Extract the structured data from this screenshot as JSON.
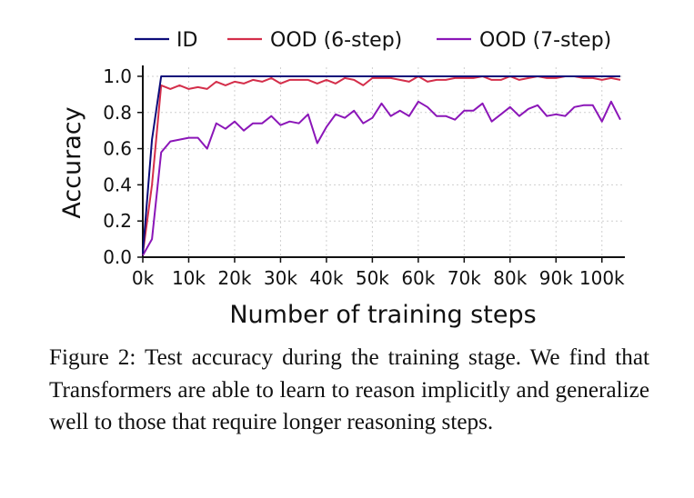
{
  "chart_data": {
    "type": "line",
    "xlabel": "Number of training steps",
    "ylabel": "Accuracy",
    "xlim": [
      0,
      105000
    ],
    "ylim": [
      0,
      1.05
    ],
    "x_ticks": [
      0,
      10000,
      20000,
      30000,
      40000,
      50000,
      60000,
      70000,
      80000,
      90000,
      100000
    ],
    "x_tick_labels": [
      "0k",
      "10k",
      "20k",
      "30k",
      "40k",
      "50k",
      "60k",
      "70k",
      "80k",
      "90k",
      "100k"
    ],
    "y_ticks": [
      0.0,
      0.2,
      0.4,
      0.6,
      0.8,
      1.0
    ],
    "y_tick_labels": [
      "0.0",
      "0.2",
      "0.4",
      "0.6",
      "0.8",
      "1.0"
    ],
    "grid": true,
    "legend_position": "top",
    "x": [
      0,
      2000,
      4000,
      6000,
      8000,
      10000,
      12000,
      14000,
      16000,
      18000,
      20000,
      22000,
      24000,
      26000,
      28000,
      30000,
      32000,
      34000,
      36000,
      38000,
      40000,
      42000,
      44000,
      46000,
      48000,
      50000,
      52000,
      54000,
      56000,
      58000,
      60000,
      62000,
      64000,
      66000,
      68000,
      70000,
      72000,
      74000,
      76000,
      78000,
      80000,
      82000,
      84000,
      86000,
      88000,
      90000,
      92000,
      94000,
      96000,
      98000,
      100000,
      102000,
      104000
    ],
    "series": [
      {
        "name": "ID",
        "color": "#0c0c7a",
        "values": [
          0.02,
          0.65,
          1.0,
          1.0,
          1.0,
          1.0,
          1.0,
          1.0,
          1.0,
          1.0,
          1.0,
          1.0,
          1.0,
          1.0,
          1.0,
          1.0,
          1.0,
          1.0,
          1.0,
          1.0,
          1.0,
          1.0,
          1.0,
          1.0,
          1.0,
          1.0,
          1.0,
          1.0,
          1.0,
          1.0,
          1.0,
          1.0,
          1.0,
          1.0,
          1.0,
          1.0,
          1.0,
          1.0,
          1.0,
          1.0,
          1.0,
          1.0,
          1.0,
          1.0,
          1.0,
          1.0,
          1.0,
          1.0,
          1.0,
          1.0,
          1.0,
          1.0,
          1.0
        ]
      },
      {
        "name": "OOD (6-step)",
        "color": "#d42e4a",
        "values": [
          0.02,
          0.4,
          0.95,
          0.93,
          0.95,
          0.93,
          0.94,
          0.93,
          0.97,
          0.95,
          0.97,
          0.96,
          0.98,
          0.97,
          0.99,
          0.96,
          0.98,
          0.98,
          0.98,
          0.96,
          0.98,
          0.96,
          0.99,
          0.98,
          0.95,
          0.99,
          0.99,
          0.99,
          0.98,
          0.97,
          1.0,
          0.97,
          0.98,
          0.98,
          0.99,
          0.99,
          0.99,
          1.0,
          0.98,
          0.98,
          1.0,
          0.98,
          0.99,
          1.0,
          0.99,
          0.99,
          1.0,
          1.0,
          0.99,
          0.99,
          0.98,
          0.99,
          0.98
        ]
      },
      {
        "name": "OOD (7-step)",
        "color": "#8b16b8",
        "values": [
          0.01,
          0.1,
          0.58,
          0.64,
          0.65,
          0.66,
          0.66,
          0.6,
          0.74,
          0.71,
          0.75,
          0.7,
          0.74,
          0.74,
          0.78,
          0.73,
          0.75,
          0.74,
          0.79,
          0.63,
          0.72,
          0.79,
          0.77,
          0.81,
          0.74,
          0.77,
          0.85,
          0.78,
          0.81,
          0.78,
          0.86,
          0.83,
          0.78,
          0.78,
          0.76,
          0.81,
          0.81,
          0.85,
          0.75,
          0.79,
          0.83,
          0.78,
          0.82,
          0.84,
          0.78,
          0.79,
          0.78,
          0.83,
          0.84,
          0.84,
          0.75,
          0.86,
          0.76
        ]
      }
    ]
  },
  "caption": {
    "text": "Figure 2: Test accuracy during the training stage. We find that Transformers are able to learn to reason implicitly and generalize well to those that require longer reasoning steps."
  }
}
